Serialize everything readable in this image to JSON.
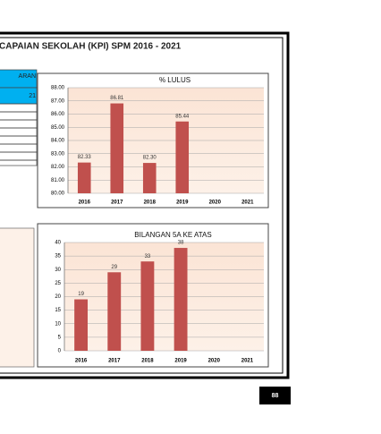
{
  "header": {
    "title": "CAPAIAN SEKOLAH (KPI) SPM 2016 - 2021",
    "page_number": "88"
  },
  "side_table": {
    "header": [
      "ARAN",
      "21"
    ]
  },
  "chart_data": [
    {
      "type": "bar",
      "title": "% LULUS",
      "categories": [
        "2016",
        "2017",
        "2018",
        "2019",
        "2020",
        "2021"
      ],
      "values": [
        82.33,
        86.81,
        82.3,
        85.44,
        null,
        null
      ],
      "value_labels": [
        "82.33",
        "86.81",
        "82.30",
        "85.44",
        null,
        null
      ],
      "color": "#c0504d",
      "ylim": [
        80,
        88
      ],
      "yticks": [
        {
          "value": 80,
          "label": "80.00"
        },
        {
          "value": 81,
          "label": "81.00"
        },
        {
          "value": 82,
          "label": "82.00"
        },
        {
          "value": 83,
          "label": "83.00"
        },
        {
          "value": 84,
          "label": "84.00"
        },
        {
          "value": 85,
          "label": "85.00"
        },
        {
          "value": 86,
          "label": "86.00"
        },
        {
          "value": 87,
          "label": "87.00"
        },
        {
          "value": 88,
          "label": "88.00"
        }
      ],
      "grid": true
    },
    {
      "type": "bar",
      "title": "BILANGAN 5A KE ATAS",
      "categories": [
        "2016",
        "2017",
        "2018",
        "2019",
        "2020",
        "2021"
      ],
      "values": [
        19,
        29,
        33,
        38,
        null,
        null
      ],
      "color": "#c0504d",
      "ylim": [
        0,
        40
      ],
      "yticks": [
        0,
        5,
        10,
        15,
        20,
        25,
        30,
        35,
        40
      ],
      "grid": true
    }
  ]
}
